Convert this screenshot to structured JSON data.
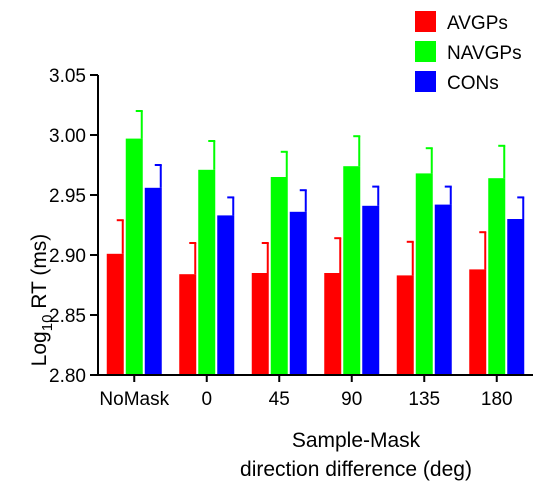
{
  "chart_data": {
    "type": "bar",
    "categories": [
      "NoMask",
      "0",
      "45",
      "90",
      "135",
      "180"
    ],
    "series": [
      {
        "name": "AVGPs",
        "color": "#ff0000",
        "values": [
          2.901,
          2.884,
          2.885,
          2.885,
          2.883,
          2.888
        ],
        "errors": [
          0.028,
          0.026,
          0.025,
          0.029,
          0.028,
          0.031
        ]
      },
      {
        "name": "NAVGPs",
        "color": "#00ff00",
        "values": [
          2.997,
          2.971,
          2.965,
          2.974,
          2.968,
          2.964
        ],
        "errors": [
          0.023,
          0.024,
          0.021,
          0.025,
          0.021,
          0.027
        ]
      },
      {
        "name": "CONs",
        "color": "#0000ff",
        "values": [
          2.956,
          2.933,
          2.936,
          2.941,
          2.942,
          2.93
        ],
        "errors": [
          0.019,
          0.015,
          0.018,
          0.016,
          0.015,
          0.018
        ]
      }
    ],
    "ylim": [
      2.8,
      3.05
    ],
    "yticks": [
      "2.80",
      "2.85",
      "2.90",
      "2.95",
      "3.00",
      "3.05"
    ],
    "ylabel": {
      "prefix": "Log",
      "sub": "10",
      "suffix": " RT (ms)"
    },
    "xlabel_lines": [
      "Sample-Mask",
      "direction difference (deg)"
    ],
    "legend_position": "top-right",
    "grid": false
  }
}
